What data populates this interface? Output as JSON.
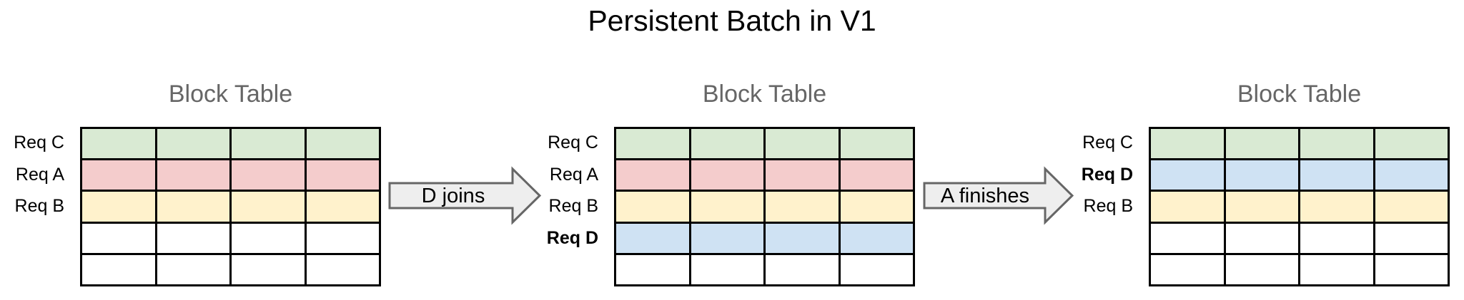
{
  "title": "Persistent Batch in V1",
  "columns": 4,
  "colors": {
    "green": "#d9ead3",
    "red": "#f4cccc",
    "yellow": "#fff2cc",
    "blue": "#cfe2f3",
    "white": "#ffffff",
    "grid_line": "#000000",
    "table_title_gray": "#666666",
    "arrow_fill": "#eeeeee",
    "arrow_border": "#666666"
  },
  "panels": [
    {
      "title": "Block Table",
      "rows": [
        {
          "label": "Req C",
          "bold": false,
          "color": "green"
        },
        {
          "label": "Req A",
          "bold": false,
          "color": "red"
        },
        {
          "label": "Req B",
          "bold": false,
          "color": "yellow"
        },
        {
          "label": "",
          "bold": false,
          "color": "white"
        },
        {
          "label": "",
          "bold": false,
          "color": "white"
        }
      ]
    },
    {
      "title": "Block Table",
      "rows": [
        {
          "label": "Req C",
          "bold": false,
          "color": "green"
        },
        {
          "label": "Req A",
          "bold": false,
          "color": "red"
        },
        {
          "label": "Req B",
          "bold": false,
          "color": "yellow"
        },
        {
          "label": "Req D",
          "bold": true,
          "color": "blue"
        },
        {
          "label": "",
          "bold": false,
          "color": "white"
        }
      ]
    },
    {
      "title": "Block Table",
      "rows": [
        {
          "label": "Req C",
          "bold": false,
          "color": "green"
        },
        {
          "label": "Req D",
          "bold": true,
          "color": "blue"
        },
        {
          "label": "Req B",
          "bold": false,
          "color": "yellow"
        },
        {
          "label": "",
          "bold": false,
          "color": "white"
        },
        {
          "label": "",
          "bold": false,
          "color": "white"
        }
      ]
    }
  ],
  "arrows": [
    {
      "label": "D joins"
    },
    {
      "label": "A finishes"
    }
  ]
}
